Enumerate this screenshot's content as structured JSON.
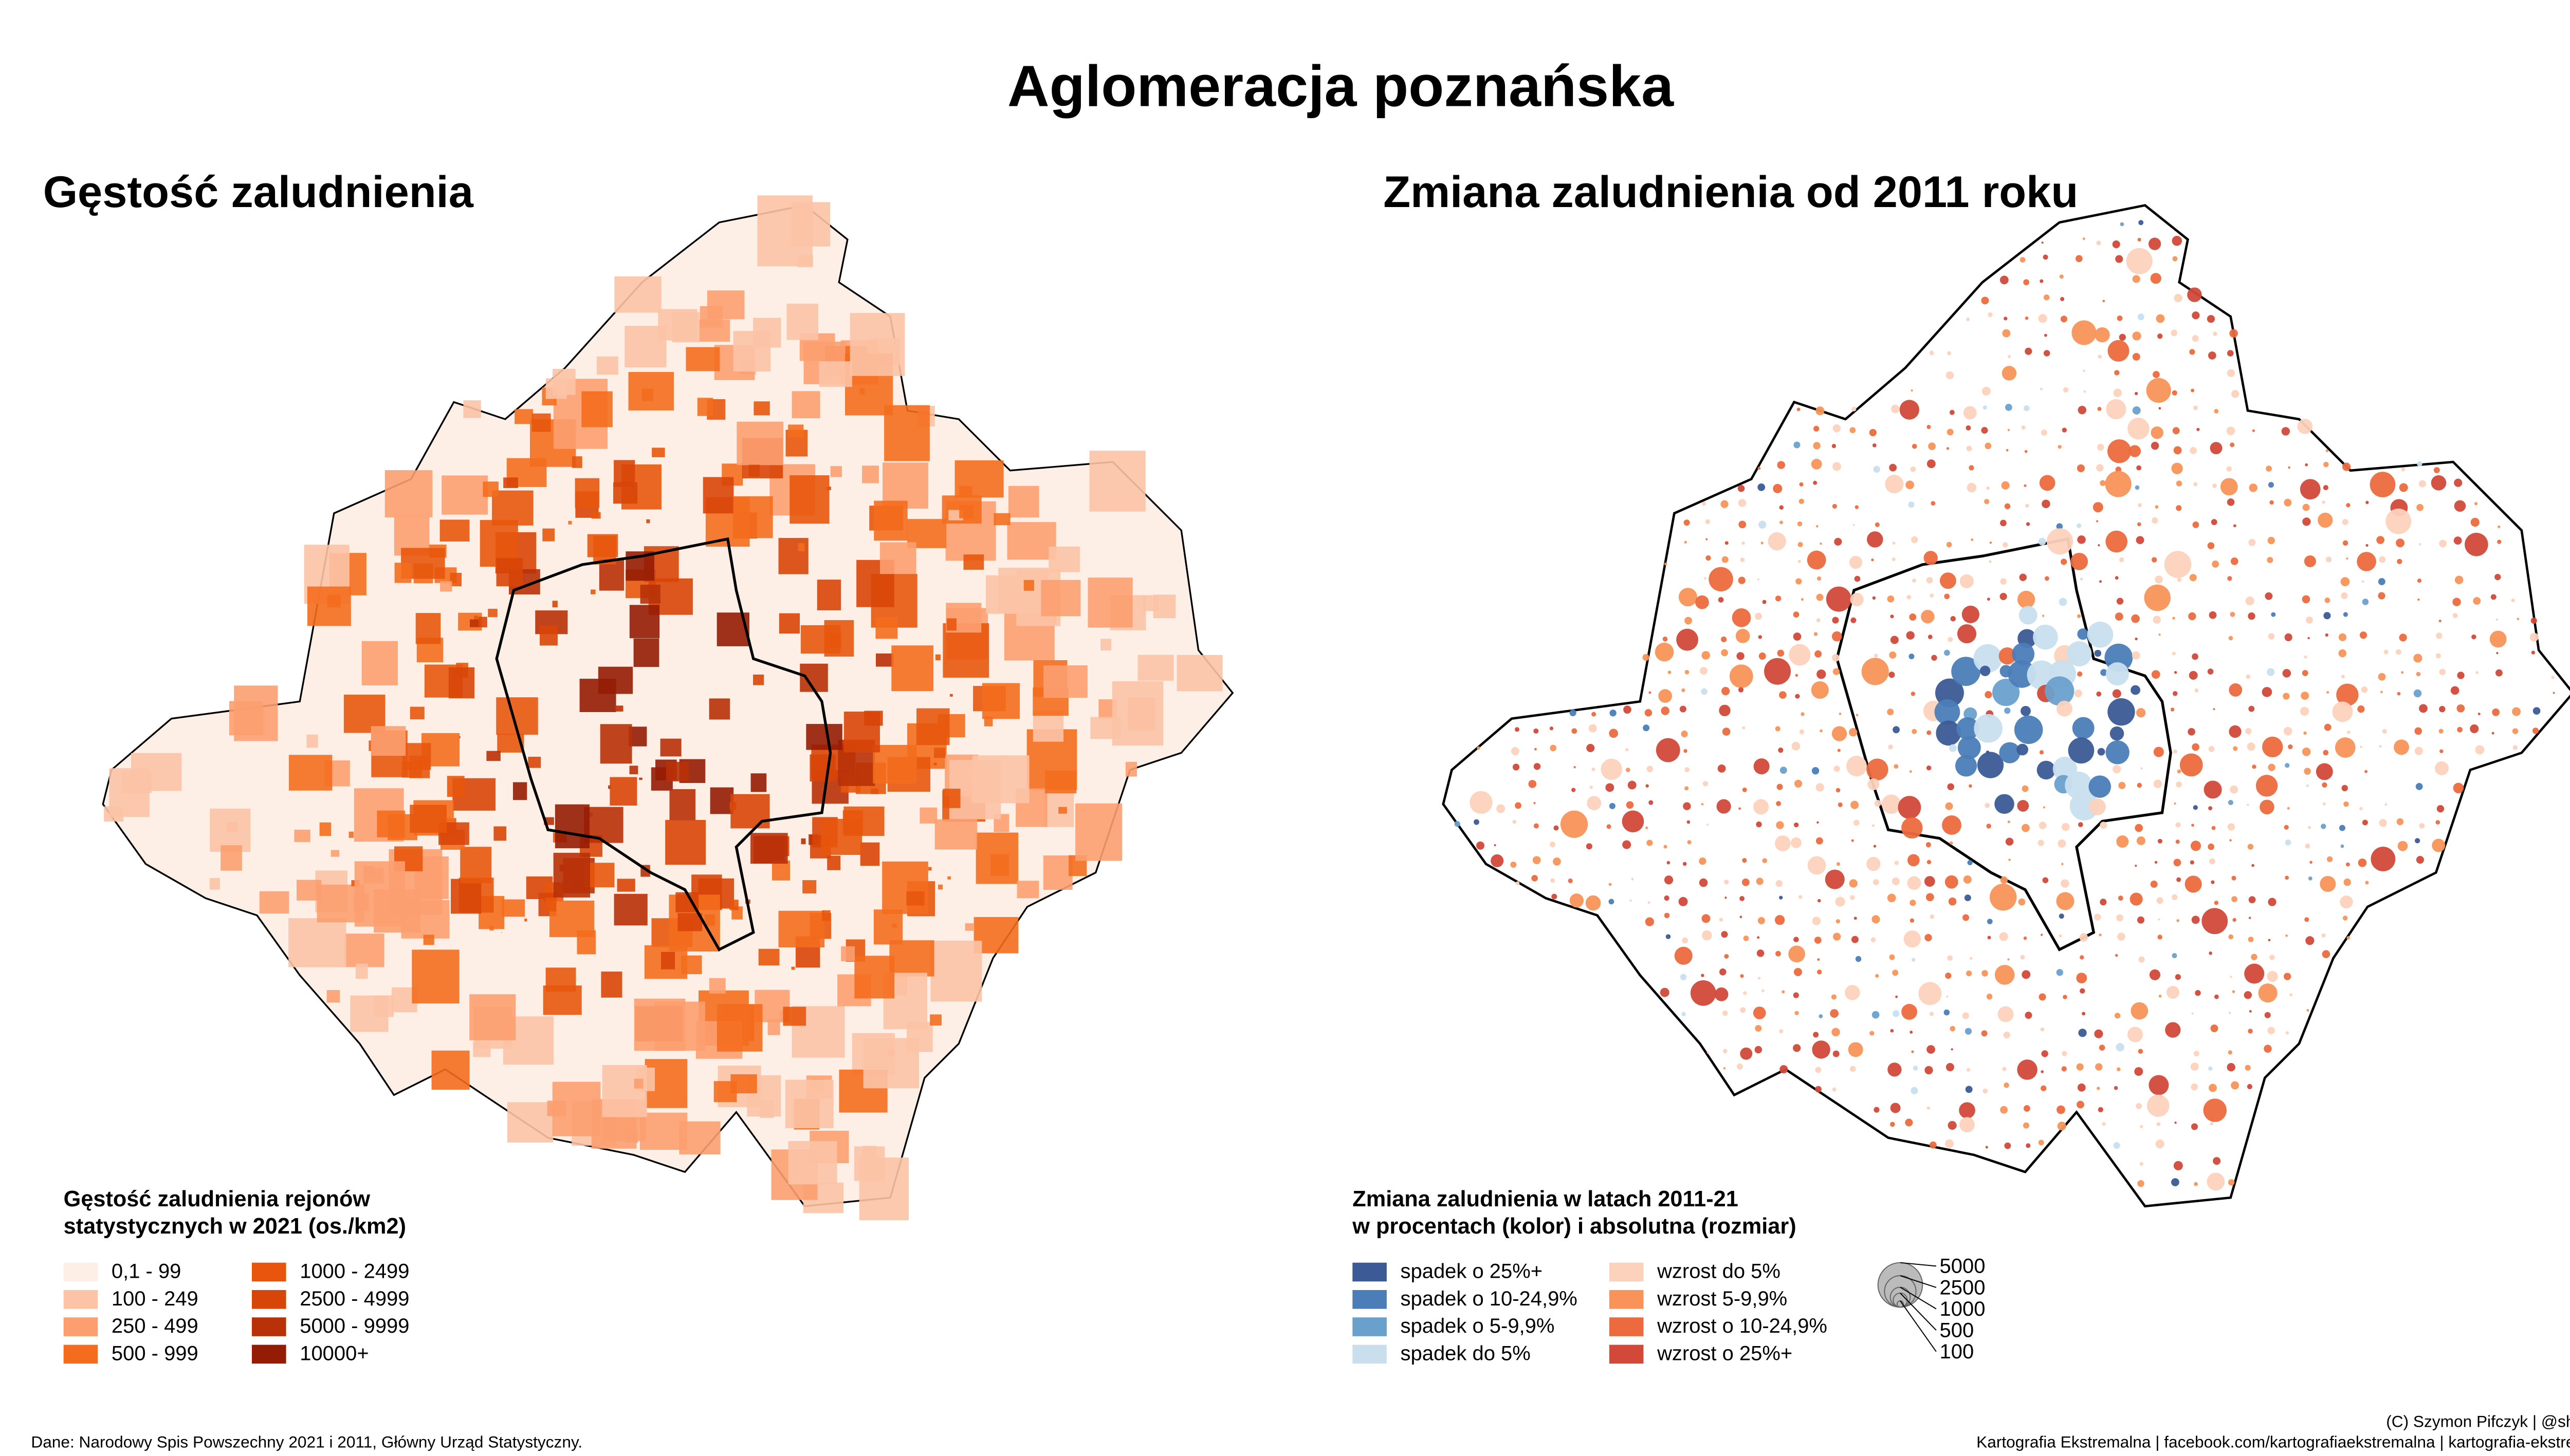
{
  "title": "Aglomeracja poznańska",
  "density_map": {
    "title": "Gęstość zaludnienia",
    "legend": {
      "title": [
        "Gęstość zaludnienia rejonów",
        "statystycznych w 2021 (os./km2)"
      ],
      "items": [
        {
          "label": "0,1 - 99",
          "color": "#fdeee6"
        },
        {
          "label": "100 - 249",
          "color": "#fcc3a6"
        },
        {
          "label": "250 - 499",
          "color": "#fc9e70"
        },
        {
          "label": "500 - 999",
          "color": "#f46d1e"
        },
        {
          "label": "1000 - 2499",
          "color": "#e8560d"
        },
        {
          "label": "2500 - 4999",
          "color": "#d84508"
        },
        {
          "label": "5000 - 9999",
          "color": "#b83108"
        },
        {
          "label": "10000+",
          "color": "#951c04"
        }
      ]
    }
  },
  "change_map": {
    "title": "Zmiana zaludnienia od 2011 roku",
    "legend": {
      "title": [
        "Zmiana zaludnienia w latach 2011-21",
        "w procentach (kolor) i absolutna (rozmiar)"
      ],
      "items": [
        {
          "label": "spadek o 25%+",
          "color": "#3c5a96"
        },
        {
          "label": "spadek o 10-24,9%",
          "color": "#4b7db8"
        },
        {
          "label": "spadek o 5-9,9%",
          "color": "#6aa0cc"
        },
        {
          "label": "spadek do 5%",
          "color": "#c9dfee"
        },
        {
          "label": "wzrost do 5%",
          "color": "#fcd2bd"
        },
        {
          "label": "wzrost 5-9,9%",
          "color": "#f9935a"
        },
        {
          "label": "wzrost o 10-24,9%",
          "color": "#ec6a3e"
        },
        {
          "label": "wzrost o 25%+",
          "color": "#d2493a"
        }
      ],
      "sizes": [
        5000,
        2500,
        1000,
        500,
        100
      ]
    }
  },
  "footer": {
    "source": "Dane: Narodowy Spis Powszechny 2021 i 2011, Główny Urząd Statystyczny.",
    "credits": [
      "(C) Szymon Pifczyk | @sheemawn",
      "Kartografia Ekstremalna | facebook.com/kartografiaekstremalna | kartografia-ekstremalna.pl"
    ]
  }
}
